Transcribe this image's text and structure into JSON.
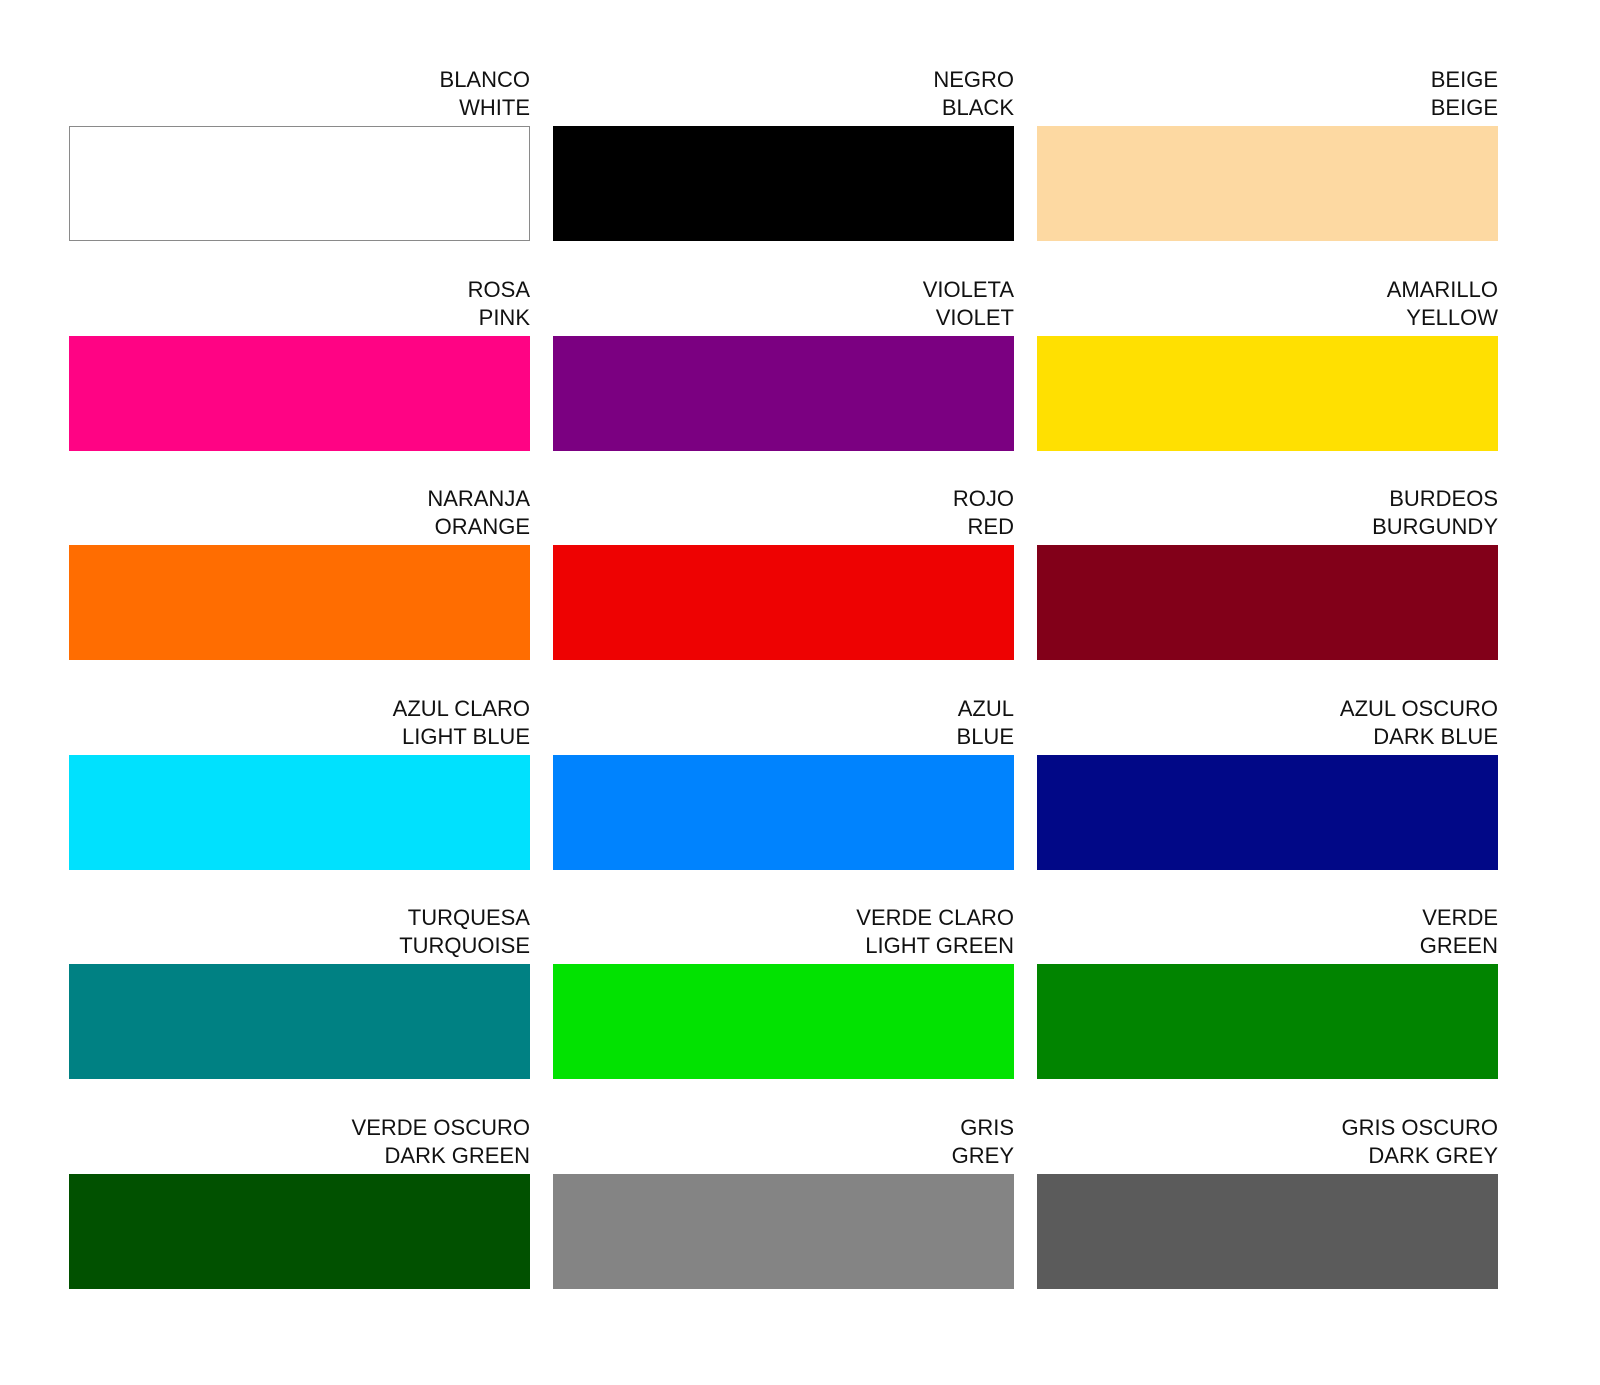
{
  "swatches": [
    {
      "es": "BLANCO",
      "en": "WHITE",
      "color": "#ffffff",
      "border": true
    },
    {
      "es": "NEGRO",
      "en": "BLACK",
      "color": "#000000"
    },
    {
      "es": "BEIGE",
      "en": "BEIGE",
      "color": "#fdd9a2"
    },
    {
      "es": "ROSA",
      "en": "PINK",
      "color": "#ff0384"
    },
    {
      "es": "VIOLETA",
      "en": "VIOLET",
      "color": "#7b0081"
    },
    {
      "es": "AMARILLO",
      "en": "YELLOW",
      "color": "#ffe001"
    },
    {
      "es": "NARANJA",
      "en": "ORANGE",
      "color": "#ff6d01"
    },
    {
      "es": "ROJO",
      "en": "RED",
      "color": "#ee0202"
    },
    {
      "es": "BURDEOS",
      "en": "BURGUNDY",
      "color": "#820019"
    },
    {
      "es": "AZUL CLARO",
      "en": "LIGHT BLUE",
      "color": "#00e1fe"
    },
    {
      "es": "AZUL",
      "en": "BLUE",
      "color": "#0083fe"
    },
    {
      "es": "AZUL OSCURO",
      "en": "DARK BLUE",
      "color": "#010887"
    },
    {
      "es": "TURQUESA",
      "en": "TURQUOISE",
      "color": "#008183"
    },
    {
      "es": "VERDE CLARO",
      "en": "LIGHT GREEN",
      "color": "#02e201"
    },
    {
      "es": "VERDE",
      "en": "GREEN",
      "color": "#018400"
    },
    {
      "es": "VERDE OSCURO",
      "en": "DARK GREEN",
      "color": "#015100"
    },
    {
      "es": "GRIS",
      "en": "GREY",
      "color": "#848484"
    },
    {
      "es": "GRIS OSCURO",
      "en": "DARK GREY",
      "color": "#5b5b5b"
    }
  ]
}
